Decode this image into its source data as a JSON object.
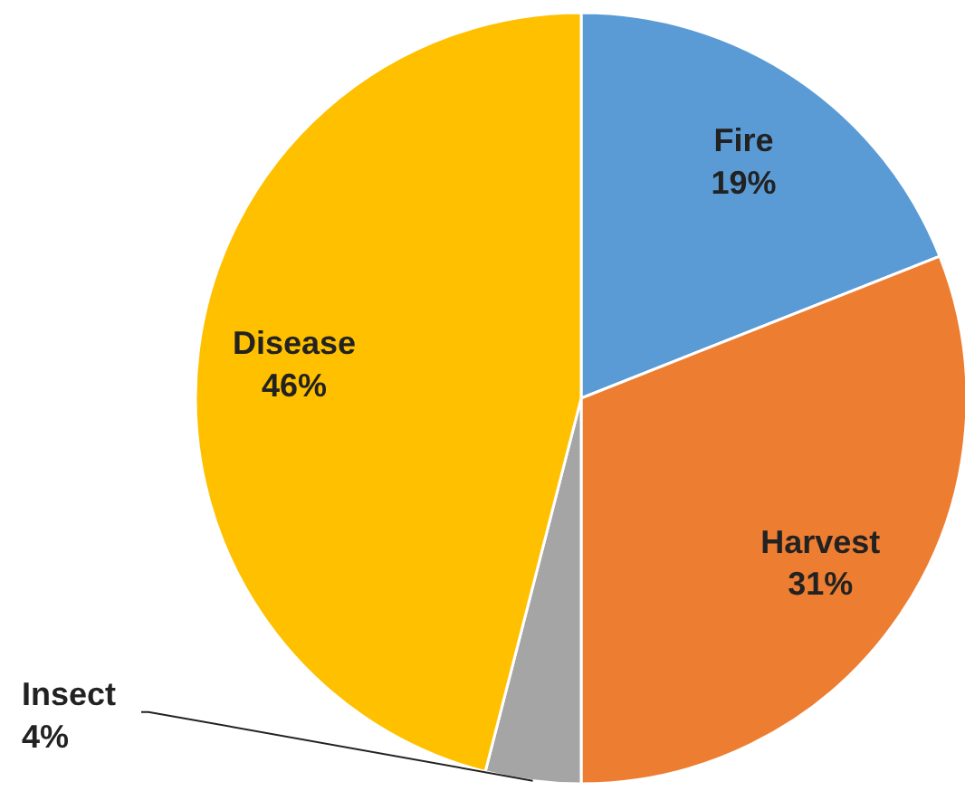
{
  "chart_data": {
    "type": "pie",
    "categories": [
      "Fire",
      "Harvest",
      "Insect",
      "Disease"
    ],
    "values": [
      19,
      31,
      4,
      46
    ],
    "value_labels": [
      "19%",
      "31%",
      "4%",
      "46%"
    ],
    "colors": [
      "#5b9bd5",
      "#ed7d31",
      "#a5a5a5",
      "#ffc000"
    ]
  }
}
